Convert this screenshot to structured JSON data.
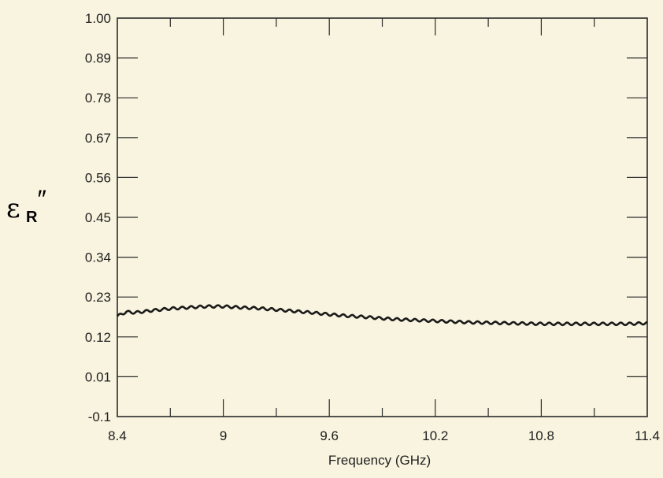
{
  "chart_data": {
    "type": "line",
    "xlabel": "Frequency (GHz)",
    "ylabel_main": "ε",
    "ylabel_sub": "R",
    "ylabel_prime": "″",
    "xlim": [
      8.4,
      11.4
    ],
    "ylim": [
      -0.1,
      1.0
    ],
    "x_ticks": [
      "8.4",
      "9",
      "9.6",
      "10.2",
      "10.8",
      "11.4"
    ],
    "y_ticks": [
      "1.00",
      "0.89",
      "0.78",
      "0.67",
      "0.56",
      "0.45",
      "0.34",
      "0.23",
      "0.12",
      "0.01",
      "-0.1"
    ],
    "grid": false,
    "series": [
      {
        "x": [
          8.4,
          8.45,
          8.5,
          8.6,
          8.7,
          8.8,
          8.9,
          9.0,
          9.1,
          9.2,
          9.3,
          9.4,
          9.5,
          9.6,
          9.7,
          9.8,
          9.9,
          10.0,
          10.1,
          10.2,
          10.3,
          10.4,
          10.5,
          10.6,
          10.7,
          10.8,
          10.9,
          11.0,
          11.1,
          11.2,
          11.3,
          11.4
        ],
        "y": [
          0.177,
          0.189,
          0.187,
          0.193,
          0.198,
          0.201,
          0.204,
          0.204,
          0.201,
          0.199,
          0.195,
          0.191,
          0.187,
          0.182,
          0.178,
          0.175,
          0.171,
          0.168,
          0.166,
          0.164,
          0.162,
          0.16,
          0.159,
          0.158,
          0.157,
          0.156,
          0.156,
          0.156,
          0.156,
          0.156,
          0.156,
          0.158
        ]
      }
    ]
  }
}
